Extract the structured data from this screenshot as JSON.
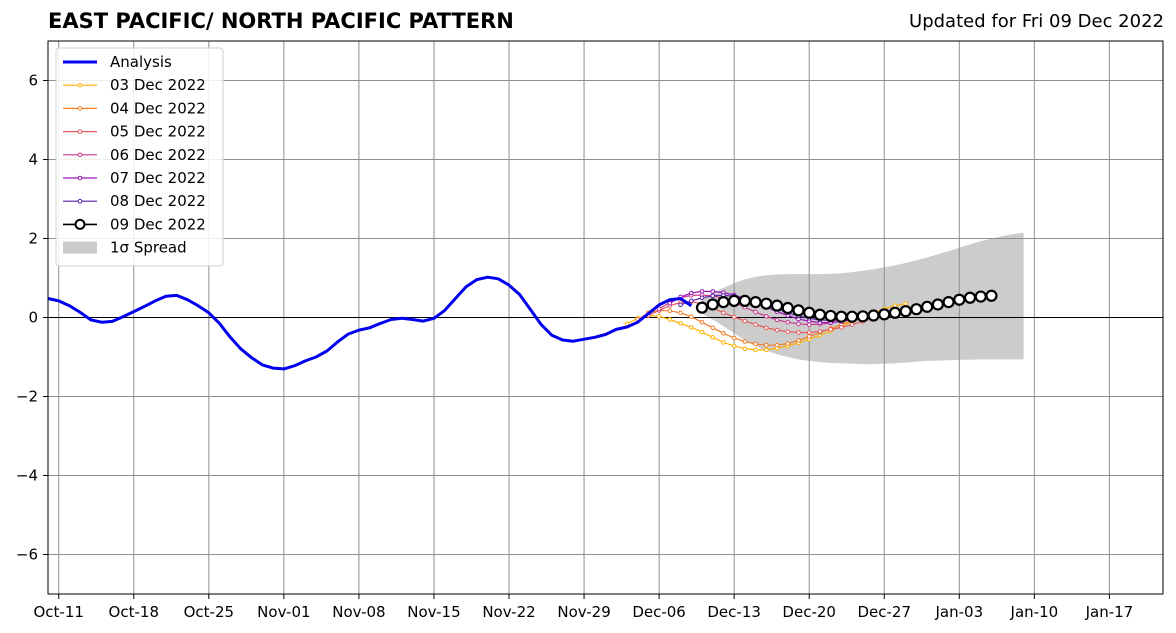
{
  "title": "EAST PACIFIC/ NORTH PACIFIC PATTERN",
  "updated": "Updated for Fri 09 Dec 2022",
  "chart_data": {
    "type": "line",
    "ylim": [
      -7,
      7
    ],
    "xlim": [
      "2022-10-10",
      "2023-01-22"
    ],
    "grid": true,
    "legend_position": "top-left",
    "yticks": [
      -6,
      -4,
      -2,
      0,
      2,
      4,
      6
    ],
    "ytick_labels": [
      "−6",
      "−4",
      "−2",
      "0",
      "2",
      "4",
      "6"
    ],
    "xtick_dates": [
      "2022-10-11",
      "2022-10-18",
      "2022-10-25",
      "2022-11-01",
      "2022-11-08",
      "2022-11-15",
      "2022-11-22",
      "2022-11-29",
      "2022-12-06",
      "2022-12-13",
      "2022-12-20",
      "2022-12-27",
      "2023-01-03",
      "2023-01-10",
      "2023-01-17"
    ],
    "xtick_labels": [
      "Oct-11",
      "Oct-18",
      "Oct-25",
      "Nov-01",
      "Nov-08",
      "Nov-15",
      "Nov-22",
      "Nov-29",
      "Dec-06",
      "Dec-13",
      "Dec-20",
      "Dec-27",
      "Jan-03",
      "Jan-10",
      "Jan-17"
    ],
    "analysis": {
      "name": "Analysis",
      "color": "#0000ee",
      "points": [
        [
          "2022-10-10",
          0.48
        ],
        [
          "2022-10-11",
          0.42
        ],
        [
          "2022-10-12",
          0.3
        ],
        [
          "2022-10-13",
          0.13
        ],
        [
          "2022-10-14",
          -0.06
        ],
        [
          "2022-10-15",
          -0.12
        ],
        [
          "2022-10-16",
          -0.1
        ],
        [
          "2022-10-17",
          0.02
        ],
        [
          "2022-10-18",
          0.15
        ],
        [
          "2022-10-19",
          0.28
        ],
        [
          "2022-10-20",
          0.42
        ],
        [
          "2022-10-21",
          0.54
        ],
        [
          "2022-10-22",
          0.56
        ],
        [
          "2022-10-23",
          0.45
        ],
        [
          "2022-10-24",
          0.3
        ],
        [
          "2022-10-25",
          0.12
        ],
        [
          "2022-10-26",
          -0.15
        ],
        [
          "2022-10-27",
          -0.5
        ],
        [
          "2022-10-28",
          -0.8
        ],
        [
          "2022-10-29",
          -1.02
        ],
        [
          "2022-10-30",
          -1.2
        ],
        [
          "2022-10-31",
          -1.28
        ],
        [
          "2022-11-01",
          -1.3
        ],
        [
          "2022-11-02",
          -1.22
        ],
        [
          "2022-11-03",
          -1.1
        ],
        [
          "2022-11-04",
          -1.0
        ],
        [
          "2022-11-05",
          -0.85
        ],
        [
          "2022-11-06",
          -0.62
        ],
        [
          "2022-11-07",
          -0.42
        ],
        [
          "2022-11-08",
          -0.32
        ],
        [
          "2022-11-09",
          -0.26
        ],
        [
          "2022-11-10",
          -0.15
        ],
        [
          "2022-11-11",
          -0.05
        ],
        [
          "2022-11-12",
          -0.02
        ],
        [
          "2022-11-13",
          -0.05
        ],
        [
          "2022-11-14",
          -0.09
        ],
        [
          "2022-11-15",
          -0.02
        ],
        [
          "2022-11-16",
          0.18
        ],
        [
          "2022-11-17",
          0.48
        ],
        [
          "2022-11-18",
          0.78
        ],
        [
          "2022-11-19",
          0.96
        ],
        [
          "2022-11-20",
          1.02
        ],
        [
          "2022-11-21",
          0.98
        ],
        [
          "2022-11-22",
          0.82
        ],
        [
          "2022-11-23",
          0.58
        ],
        [
          "2022-11-24",
          0.2
        ],
        [
          "2022-11-25",
          -0.18
        ],
        [
          "2022-11-26",
          -0.45
        ],
        [
          "2022-11-27",
          -0.57
        ],
        [
          "2022-11-28",
          -0.6
        ],
        [
          "2022-11-29",
          -0.55
        ],
        [
          "2022-11-30",
          -0.5
        ],
        [
          "2022-12-01",
          -0.43
        ],
        [
          "2022-12-02",
          -0.3
        ],
        [
          "2022-12-03",
          -0.24
        ],
        [
          "2022-12-04",
          -0.12
        ],
        [
          "2022-12-05",
          0.1
        ],
        [
          "2022-12-06",
          0.32
        ],
        [
          "2022-12-07",
          0.45
        ],
        [
          "2022-12-08",
          0.48
        ],
        [
          "2022-12-09",
          0.3
        ]
      ]
    },
    "forecasts": [
      {
        "name": "03 Dec 2022",
        "color": "#ffb000",
        "width": 1.2,
        "start": "2022-12-03",
        "values": [
          -0.16,
          -0.02,
          0.05,
          0.03,
          -0.05,
          -0.15,
          -0.25,
          -0.37,
          -0.5,
          -0.63,
          -0.72,
          -0.79,
          -0.82,
          -0.82,
          -0.78,
          -0.72,
          -0.64,
          -0.55,
          -0.45,
          -0.34,
          -0.22,
          -0.1,
          0.02,
          0.12,
          0.22,
          0.3,
          0.35
        ]
      },
      {
        "name": "04 Dec 2022",
        "color": "#f07f28",
        "width": 1.2,
        "start": "2022-12-04",
        "values": [
          -0.05,
          0.12,
          0.18,
          0.17,
          0.12,
          0.02,
          -0.12,
          -0.26,
          -0.4,
          -0.52,
          -0.61,
          -0.67,
          -0.7,
          -0.7,
          -0.66,
          -0.58,
          -0.48,
          -0.38,
          -0.28,
          -0.18,
          -0.08,
          0.02,
          0.1
        ]
      },
      {
        "name": "05 Dec 2022",
        "color": "#e45b5b",
        "width": 1.2,
        "start": "2022-12-05",
        "values": [
          0.05,
          0.18,
          0.3,
          0.38,
          0.4,
          0.35,
          0.24,
          0.12,
          0.01,
          -0.09,
          -0.18,
          -0.26,
          -0.32,
          -0.36,
          -0.38,
          -0.38,
          -0.35,
          -0.3,
          -0.25,
          -0.18,
          -0.1,
          -0.02
        ]
      },
      {
        "name": "06 Dec 2022",
        "color": "#c93a8e",
        "width": 1.2,
        "start": "2022-12-06",
        "values": [
          0.22,
          0.38,
          0.5,
          0.56,
          0.57,
          0.55,
          0.48,
          0.38,
          0.26,
          0.14,
          0.03,
          -0.06,
          -0.12,
          -0.16,
          -0.18,
          -0.17,
          -0.14,
          -0.08,
          0.0
        ]
      },
      {
        "name": "07 Dec 2022",
        "color": "#9a17ba",
        "width": 1.2,
        "start": "2022-12-07",
        "values": [
          0.36,
          0.52,
          0.62,
          0.66,
          0.66,
          0.63,
          0.57,
          0.48,
          0.37,
          0.26,
          0.15,
          0.05,
          -0.04,
          -0.09,
          -0.13,
          -0.13,
          -0.1,
          -0.05,
          0.02
        ]
      },
      {
        "name": "08 Dec 2022",
        "color": "#5a1ea6",
        "width": 1.2,
        "start": "2022-12-08",
        "values": [
          0.32,
          0.42,
          0.5,
          0.55,
          0.56,
          0.54,
          0.48,
          0.4,
          0.31,
          0.22,
          0.12,
          0.04,
          -0.02,
          -0.06,
          -0.07,
          -0.06,
          -0.02,
          0.04
        ]
      },
      {
        "name": "09 Dec 2022",
        "color": "#000000",
        "width": 1.6,
        "start": "2022-12-10",
        "values": [
          0.25,
          0.33,
          0.39,
          0.42,
          0.42,
          0.39,
          0.35,
          0.3,
          0.24,
          0.18,
          0.12,
          0.07,
          0.04,
          0.02,
          0.02,
          0.03,
          0.05,
          0.08,
          0.12,
          0.16,
          0.21,
          0.27,
          0.33,
          0.39,
          0.45,
          0.5,
          0.53,
          0.55
        ]
      }
    ],
    "spread": {
      "name": "1σ Spread",
      "color": "#cccccc",
      "start": "2022-12-10",
      "upper": [
        0.5,
        0.62,
        0.75,
        0.87,
        0.97,
        1.03,
        1.07,
        1.09,
        1.1,
        1.1,
        1.1,
        1.1,
        1.11,
        1.12,
        1.15,
        1.18,
        1.22,
        1.27,
        1.32,
        1.38,
        1.45,
        1.52,
        1.6,
        1.68,
        1.77,
        1.85,
        1.93,
        2.0,
        2.06,
        2.11,
        2.15
      ],
      "lower": [
        0.1,
        -0.05,
        -0.22,
        -0.4,
        -0.58,
        -0.73,
        -0.84,
        -0.93,
        -1.0,
        -1.06,
        -1.1,
        -1.13,
        -1.15,
        -1.16,
        -1.17,
        -1.18,
        -1.18,
        -1.17,
        -1.16,
        -1.14,
        -1.12,
        -1.1,
        -1.09,
        -1.08,
        -1.07,
        -1.07,
        -1.06,
        -1.06,
        -1.06,
        -1.06,
        -1.06
      ]
    }
  }
}
